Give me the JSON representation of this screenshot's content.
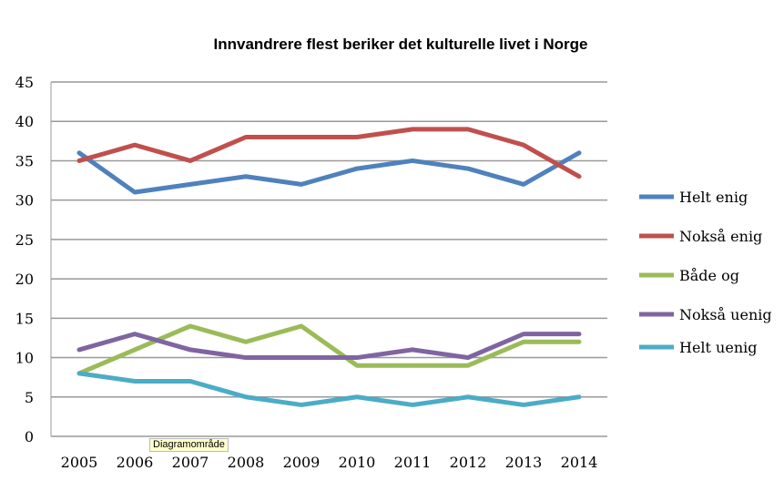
{
  "chart_data": {
    "type": "line",
    "title": "Innvandrere flest beriker det kulturelle livet i Norge",
    "xlabel": "",
    "ylabel": "",
    "x": [
      "2005",
      "2006",
      "2007",
      "2008",
      "2009",
      "2010",
      "2011",
      "2012",
      "2013",
      "2014"
    ],
    "ylim": [
      0,
      45
    ],
    "yticks": [
      0,
      5,
      10,
      15,
      20,
      25,
      30,
      35,
      40,
      45
    ],
    "grid": true,
    "legend_position": "right",
    "series": [
      {
        "name": "Helt enig",
        "color": "#4f81bd",
        "values": [
          36,
          31,
          32,
          33,
          32,
          34,
          35,
          34,
          32,
          36
        ]
      },
      {
        "name": "Nokså enig",
        "color": "#c0504d",
        "values": [
          35,
          37,
          35,
          38,
          38,
          38,
          39,
          39,
          37,
          33
        ]
      },
      {
        "name": "Både og",
        "color": "#9bbb59",
        "values": [
          8,
          11,
          14,
          12,
          14,
          9,
          9,
          9,
          12,
          12
        ]
      },
      {
        "name": "Nokså uenig",
        "color": "#8064a2",
        "values": [
          11,
          13,
          11,
          10,
          10,
          10,
          11,
          10,
          13,
          13
        ]
      },
      {
        "name": "Helt uenig",
        "color": "#4bacc6",
        "values": [
          8,
          7,
          7,
          5,
          4,
          5,
          4,
          5,
          4,
          5
        ]
      }
    ]
  },
  "tooltip": "Diagramområde"
}
